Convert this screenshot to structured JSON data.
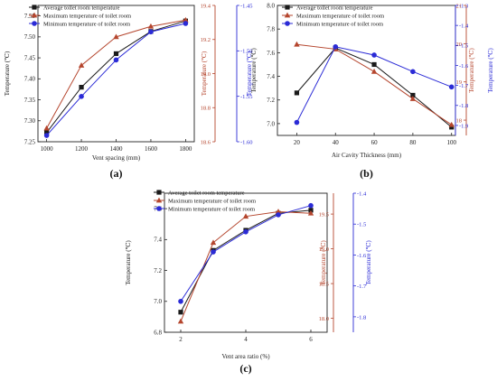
{
  "colors": {
    "avg": "#1a1a1a",
    "max": "#b5462e",
    "min": "#2b2bd6",
    "axis": "#222222",
    "right_red": "#b5462e",
    "right_blue": "#2b2bd6"
  },
  "chart_data": [
    {
      "id": "a",
      "panel_label": "(a)",
      "type": "line",
      "xlabel": "Vent spacing (mm)",
      "x": [
        1000,
        1200,
        1400,
        1600,
        1800
      ],
      "xticks": [
        "1000",
        "1200",
        "1400",
        "1600",
        "1800"
      ],
      "xlim": [
        950,
        1850
      ],
      "axes": {
        "left": {
          "label": "Temperature (℃)",
          "ylim": [
            7.25,
            7.575
          ],
          "ticks": [
            7.25,
            7.3,
            7.35,
            7.4,
            7.45,
            7.5,
            7.55
          ],
          "tick_labels": [
            "7.25",
            "7.30",
            "7.35",
            "7.40",
            "7.45",
            "7.50",
            "7.55"
          ]
        },
        "red": {
          "label": "Temperature (℃)",
          "ylim": [
            18.6,
            19.4
          ],
          "ticks": [
            18.6,
            18.8,
            19.0,
            19.2,
            19.4
          ],
          "tick_labels": [
            "18.6",
            "18.8",
            "19.0",
            "19.2",
            "19.4"
          ]
        },
        "blue": {
          "label": "Temperature (℃)",
          "ylim": [
            -1.6,
            -1.45
          ],
          "ticks": [
            -1.6,
            -1.55,
            -1.5,
            -1.45
          ],
          "tick_labels": [
            "-1.60",
            "-1.55",
            "-1.50",
            "-1.45"
          ]
        }
      },
      "series": [
        {
          "name": "Average toilet room temperature",
          "key": "avg",
          "axis": "left",
          "marker": "square",
          "values": [
            7.272,
            7.38,
            7.46,
            7.513,
            7.538
          ]
        },
        {
          "name": "Maximum temperature of toilet room",
          "key": "max",
          "axis": "left",
          "marker": "triangle",
          "values": [
            7.282,
            7.432,
            7.5,
            7.525,
            7.54
          ]
        },
        {
          "name": "Minimum temperature of toilet room",
          "key": "min",
          "axis": "left",
          "marker": "circle",
          "values": [
            7.265,
            7.358,
            7.445,
            7.512,
            7.532
          ]
        }
      ]
    },
    {
      "id": "b",
      "panel_label": "(b)",
      "type": "line",
      "xlabel": "Air Cavity Thickness (mm)",
      "x": [
        20,
        40,
        60,
        80,
        100
      ],
      "xticks": [
        "20",
        "40",
        "60",
        "80",
        "100"
      ],
      "xlim": [
        10,
        102
      ],
      "axes": {
        "left": {
          "label": "Temperature (℃)",
          "ylim": [
            6.9,
            8.0
          ],
          "ticks": [
            7.0,
            7.2,
            7.4,
            7.6,
            7.8,
            8.0
          ],
          "tick_labels": [
            "7.0",
            "7.2",
            "7.4",
            "7.6",
            "7.8",
            "8.0"
          ]
        },
        "red": {
          "label": "Temperature (℃)",
          "ylim": [
            17.6,
            21.0
          ],
          "ticks": [
            18,
            19,
            20,
            21
          ],
          "tick_labels": [
            "18",
            "19",
            "20",
            "21"
          ]
        },
        "blue": {
          "label": "Temperature (℃)",
          "ylim": [
            -1.95,
            -1.3
          ],
          "ticks": [
            -1.9,
            -1.8,
            -1.7,
            -1.6,
            -1.5,
            -1.4,
            -1.3
          ],
          "tick_labels": [
            "-1.9",
            "-1.8",
            "-1.7",
            "-1.6",
            "-1.5",
            "-1.4",
            "-1.3"
          ]
        }
      },
      "series": [
        {
          "name": "Average toilet room temperature",
          "key": "avg",
          "axis": "left",
          "marker": "square",
          "values": [
            7.26,
            7.64,
            7.5,
            7.24,
            6.97
          ]
        },
        {
          "name": "Maximum temperature of toilet room",
          "key": "max",
          "axis": "left",
          "marker": "triangle",
          "values": [
            7.67,
            7.63,
            7.44,
            7.21,
            6.99
          ]
        },
        {
          "name": "Minimum temperature of toilet room",
          "key": "min",
          "axis": "left",
          "marker": "circle",
          "values": [
            7.01,
            7.65,
            7.58,
            7.44,
            7.31
          ]
        }
      ]
    },
    {
      "id": "c",
      "panel_label": "(c)",
      "type": "line",
      "xlabel": "Vent area ratio (%)",
      "x": [
        2,
        3,
        4,
        5,
        6
      ],
      "xticks": [
        "2",
        "4",
        "6"
      ],
      "xtick_values": [
        2,
        4,
        6
      ],
      "xlim": [
        1.5,
        6.5
      ],
      "axes": {
        "left": {
          "label": "Temperature (℃)",
          "ylim": [
            6.8,
            7.7
          ],
          "ticks": [
            6.8,
            7.0,
            7.2,
            7.4,
            7.6
          ],
          "tick_labels": [
            "6.8",
            "7.0",
            "7.2",
            "7.4",
            "7.6"
          ]
        },
        "red": {
          "label": "Temperature (℃)",
          "ylim": [
            17.8,
            19.8
          ],
          "ticks": [
            18.0,
            18.5,
            19.0,
            19.5
          ],
          "tick_labels": [
            "18.0",
            "18.5",
            "19.0",
            "19.5"
          ]
        },
        "blue": {
          "label": "Temperature (℃)",
          "ylim": [
            -1.85,
            -1.4
          ],
          "ticks": [
            -1.8,
            -1.7,
            -1.6,
            -1.5,
            -1.4
          ],
          "tick_labels": [
            "-1.8",
            "-1.7",
            "-1.6",
            "-1.5",
            "-1.4"
          ]
        }
      },
      "series": [
        {
          "name": "Average toilet room temperature",
          "key": "avg",
          "axis": "left",
          "marker": "square",
          "values": [
            6.93,
            7.33,
            7.46,
            7.57,
            7.59
          ]
        },
        {
          "name": "Maximum temperature of toilet room",
          "key": "max",
          "axis": "left",
          "marker": "triangle",
          "values": [
            6.87,
            7.38,
            7.55,
            7.58,
            7.57
          ]
        },
        {
          "name": "Minimum temperature of toilet room",
          "key": "min",
          "axis": "left",
          "marker": "circle",
          "values": [
            7.0,
            7.32,
            7.45,
            7.56,
            7.62
          ]
        }
      ]
    }
  ]
}
